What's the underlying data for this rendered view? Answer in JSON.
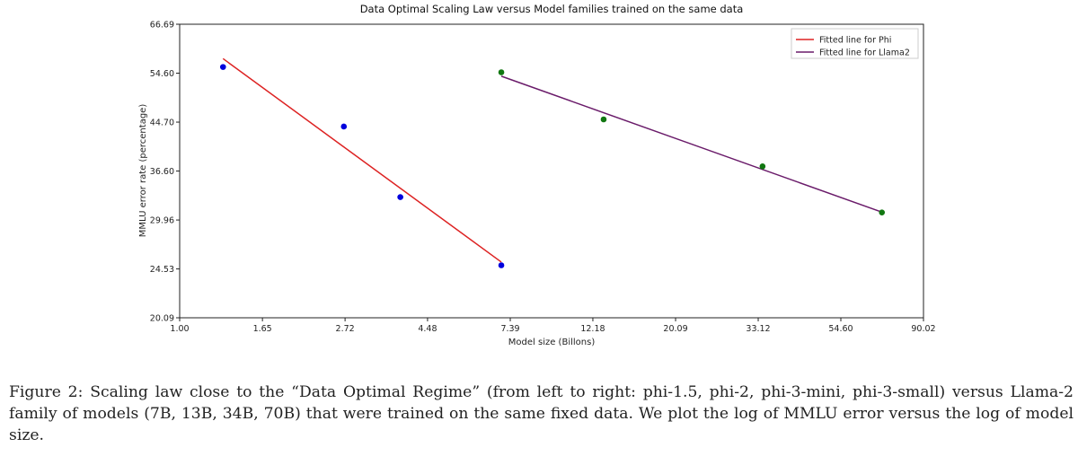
{
  "chart_data": {
    "type": "scatter",
    "title": "Data Optimal Scaling Law versus Model families trained on the same data",
    "xlabel": "Model size (Billons)",
    "ylabel": "MMLU error rate (percentage)",
    "xscale": "log",
    "yscale": "log",
    "xlim": [
      1.0,
      90.02
    ],
    "ylim": [
      20.09,
      66.69
    ],
    "xticks": [
      "1.00",
      "1.65",
      "2.72",
      "4.48",
      "7.39",
      "12.18",
      "20.09",
      "33.12",
      "54.60",
      "90.02"
    ],
    "yticks": [
      "20.09",
      "24.53",
      "29.96",
      "36.60",
      "44.70",
      "54.60",
      "66.69"
    ],
    "grid": false,
    "legend_placement": "top-right",
    "series": [
      {
        "kind": "points",
        "color": "#0000dd",
        "x": [
          1.3,
          2.7,
          3.8,
          7.0
        ],
        "y": [
          56.0,
          43.9,
          32.9,
          24.9
        ]
      },
      {
        "kind": "points",
        "color": "#117711",
        "x": [
          7,
          13,
          34,
          70
        ],
        "y": [
          54.8,
          45.2,
          37.3,
          30.9
        ]
      },
      {
        "kind": "fit",
        "name": "Fitted line for Phi",
        "color": "#dd2222",
        "fit_of": 0
      },
      {
        "kind": "fit",
        "name": "Fitted line for Llama2",
        "color": "#6a1b6a",
        "fit_of": 1
      }
    ]
  },
  "caption": "Figure 2: Scaling law close to the “Data Optimal Regime” (from left to right: phi-1.5, phi-2, phi-3-mini, phi-3-small) versus Llama-2 family of models (7B, 13B, 34B, 70B) that were trained on the same fixed data. We plot the log of MMLU error versus the log of model size."
}
